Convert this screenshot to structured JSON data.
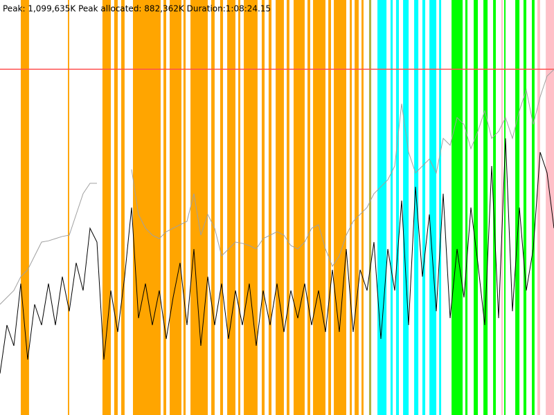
{
  "chart_data": {
    "type": "line",
    "title": "Peak: 1,099,635K   Peak allocated: 882,362K   Duration:1:08:24.15",
    "xlim": [
      0,
      4104
    ],
    "ylim": [
      0,
      1320000
    ],
    "peak_line": {
      "value": 1099635,
      "color": "#ff5050"
    },
    "events": [
      {
        "color": "#ffa500",
        "ranges": [
          [
            154,
            215
          ],
          [
            503,
            513
          ],
          [
            759,
            821
          ],
          [
            846,
            872
          ],
          [
            898,
            923
          ],
          [
            985,
            1190
          ],
          [
            1211,
            1231
          ],
          [
            1257,
            1344
          ],
          [
            1359,
            1375
          ],
          [
            1411,
            1539
          ],
          [
            1565,
            1590
          ],
          [
            1631,
            1652
          ],
          [
            1683,
            1744
          ],
          [
            1765,
            1780
          ],
          [
            1806,
            1908
          ],
          [
            1939,
            1960
          ],
          [
            1990,
            2011
          ],
          [
            2042,
            2103
          ],
          [
            2124,
            2144
          ],
          [
            2175,
            2257
          ],
          [
            2278,
            2298
          ],
          [
            2319,
            2411
          ],
          [
            2432,
            2452
          ],
          [
            2473,
            2565
          ],
          [
            2591,
            2606
          ],
          [
            2627,
            2657
          ],
          [
            2678,
            2693
          ]
        ]
      },
      {
        "color": "#b0b040",
        "ranges": [
          [
            2734,
            2750
          ]
        ]
      },
      {
        "color": "#00ffff",
        "ranges": [
          [
            2796,
            2863
          ],
          [
            2893,
            2909
          ],
          [
            2934,
            2955
          ],
          [
            2986,
            3027
          ],
          [
            3068,
            3099
          ],
          [
            3129,
            3150
          ],
          [
            3181,
            3232
          ],
          [
            3253,
            3268
          ]
        ]
      },
      {
        "color": "#00ff00",
        "ranges": [
          [
            3345,
            3427
          ],
          [
            3447,
            3463
          ],
          [
            3509,
            3540
          ],
          [
            3581,
            3612
          ],
          [
            3653,
            3673
          ],
          [
            3735,
            3745
          ],
          [
            3817,
            3848
          ],
          [
            3878,
            3899
          ],
          [
            3940,
            3960
          ]
        ]
      },
      {
        "color": "#ffc0c8",
        "ranges": [
          [
            3714,
            3724
          ],
          [
            3981,
            4001
          ],
          [
            4043,
            4104
          ]
        ]
      }
    ],
    "x": [
      0,
      51.3,
      102.6,
      153.9,
      205.2,
      256.5,
      307.8,
      359.1,
      410.4,
      461.7,
      513,
      564.3,
      615.6,
      666.9,
      718.2,
      769.5,
      820.8,
      872.1,
      923.4,
      974.7,
      1026,
      1077.3,
      1128.6,
      1179.9,
      1231.2,
      1282.5,
      1333.8,
      1385.1,
      1436.4,
      1487.7,
      1539,
      1590.3,
      1641.6,
      1692.9,
      1744.2,
      1795.5,
      1846.8,
      1898.1,
      1949.4,
      2000.7,
      2052,
      2103.3,
      2154.6,
      2205.9,
      2257.2,
      2308.5,
      2359.8,
      2411.1,
      2462.4,
      2513.7,
      2565,
      2616.3,
      2667.6,
      2718.9,
      2770.2,
      2821.5,
      2872.8,
      2924.1,
      2975.4,
      3026.7,
      3078,
      3129.3,
      3180.6,
      3231.9,
      3283.2,
      3334.5,
      3385.8,
      3437.1,
      3488.4,
      3539.7,
      3591,
      3642.3,
      3693.6,
      3744.9,
      3796.2,
      3847.5,
      3898.8,
      3950.1,
      4001.4,
      4052.7,
      4104
    ],
    "series": [
      {
        "color": "#a0a0a0",
        "values": [
          352000,
          374000,
          396000,
          440000,
          462000,
          506000,
          550000,
          554000,
          561000,
          568000,
          572000,
          638000,
          704000,
          737000,
          737000,
          null,
          null,
          null,
          null,
          781000,
          638000,
          594000,
          572000,
          561000,
          583000,
          594000,
          605000,
          616000,
          704000,
          572000,
          638000,
          594000,
          506000,
          528000,
          550000,
          546000,
          539000,
          528000,
          561000,
          572000,
          583000,
          572000,
          539000,
          528000,
          550000,
          594000,
          605000,
          528000,
          473000,
          506000,
          572000,
          616000,
          638000,
          660000,
          704000,
          726000,
          748000,
          792000,
          990000,
          836000,
          770000,
          792000,
          814000,
          770000,
          880000,
          858000,
          946000,
          924000,
          847000,
          902000,
          968000,
          880000,
          902000,
          946000,
          880000,
          968000,
          1034000,
          924000,
          1012000,
          1078000,
          1099000
        ]
      },
      {
        "color": "#000000",
        "values": [
          132000,
          286000,
          220000,
          418000,
          176000,
          352000,
          286000,
          418000,
          286000,
          440000,
          330000,
          484000,
          396000,
          594000,
          550000,
          176000,
          396000,
          264000,
          440000,
          660000,
          308000,
          418000,
          286000,
          396000,
          242000,
          374000,
          484000,
          286000,
          528000,
          220000,
          440000,
          286000,
          418000,
          242000,
          396000,
          286000,
          418000,
          220000,
          396000,
          286000,
          418000,
          264000,
          396000,
          308000,
          418000,
          286000,
          396000,
          264000,
          462000,
          264000,
          528000,
          264000,
          462000,
          396000,
          550000,
          242000,
          528000,
          396000,
          682000,
          286000,
          726000,
          440000,
          638000,
          330000,
          704000,
          308000,
          528000,
          374000,
          660000,
          484000,
          286000,
          792000,
          308000,
          880000,
          330000,
          660000,
          396000,
          528000,
          836000,
          770000,
          594000
        ]
      }
    ]
  }
}
